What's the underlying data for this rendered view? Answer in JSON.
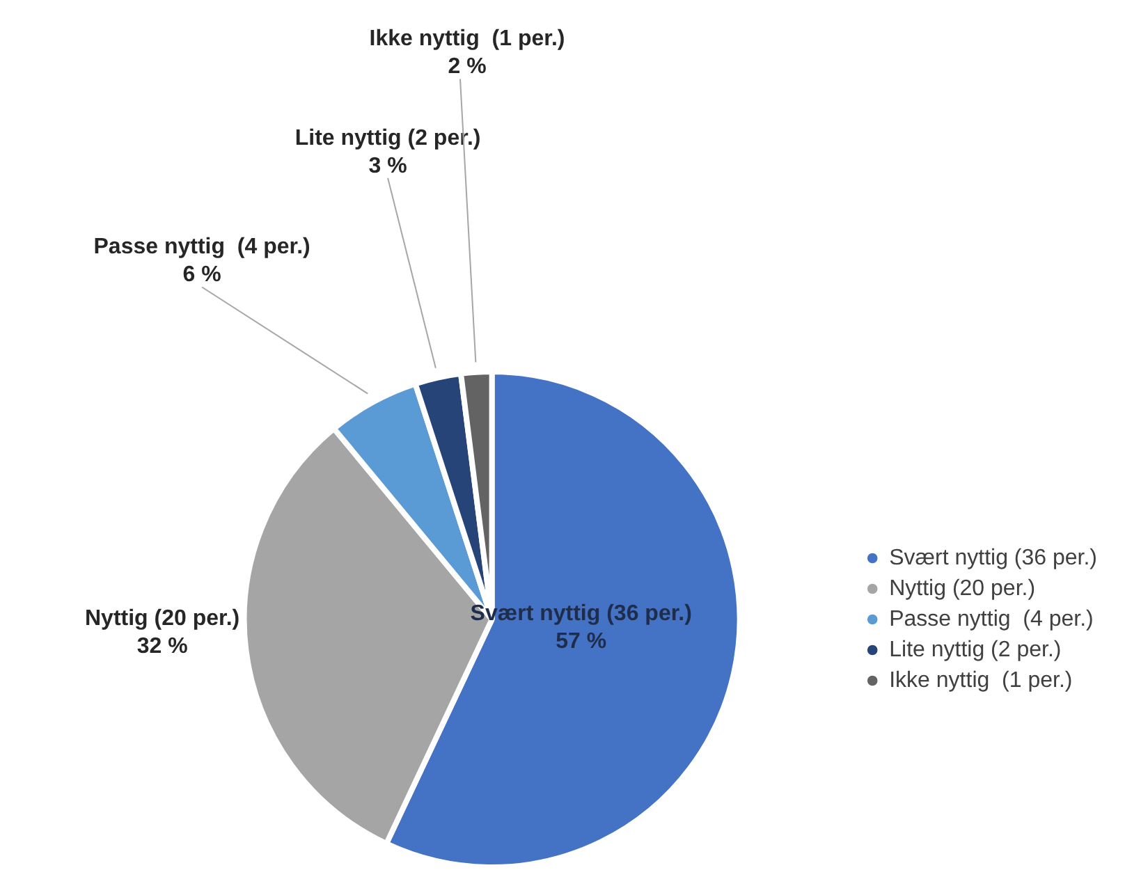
{
  "chart_data": {
    "type": "pie",
    "categories": [
      "Svært nyttig (36 per.)",
      "Nyttig (20 per.)",
      "Passe nyttig  (4 per.)",
      "Lite nyttig (2 per.)",
      "Ikke nyttig  (1 per.)"
    ],
    "values": [
      57,
      32,
      6,
      3,
      2
    ],
    "value_labels": [
      "57 %",
      "32 %",
      "6 %",
      "3 %",
      "2 %"
    ],
    "colors": [
      "#4472c4",
      "#a5a5a5",
      "#5b9bd5",
      "#264478",
      "#636363"
    ],
    "legend": "right"
  }
}
